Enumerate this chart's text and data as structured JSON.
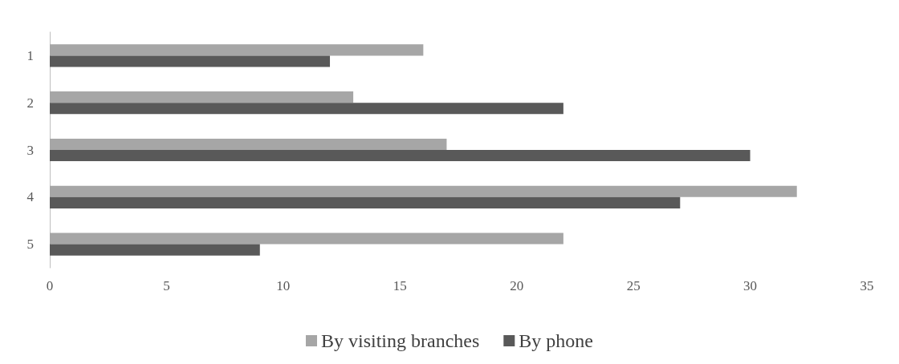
{
  "chart_data": {
    "type": "bar",
    "orientation": "horizontal",
    "categories": [
      "1",
      "2",
      "3",
      "4",
      "5"
    ],
    "series": [
      {
        "name": "By visiting branches",
        "color": "#a6a6a6",
        "values": [
          16,
          13,
          17,
          32,
          22
        ]
      },
      {
        "name": "By phone",
        "color": "#595959",
        "values": [
          12,
          22,
          30,
          27,
          9
        ]
      }
    ],
    "xlim": [
      0,
      35
    ],
    "xticks": [
      0,
      5,
      10,
      15,
      20,
      25,
      30,
      35
    ],
    "grid": false,
    "legend": "bottom"
  }
}
